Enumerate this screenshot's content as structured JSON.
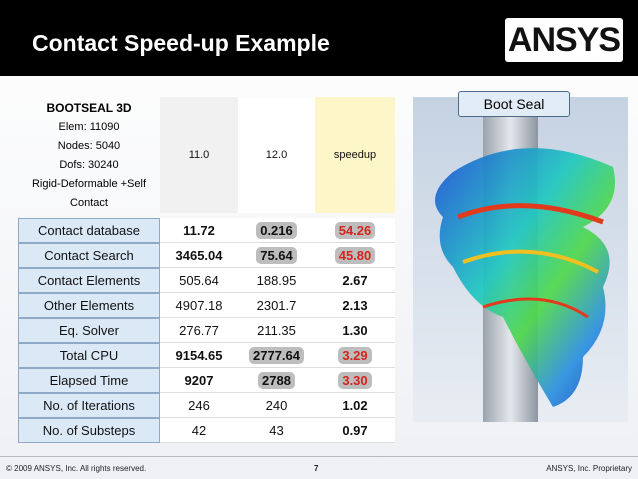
{
  "header": {
    "title": "Contact Speed-up Example",
    "logo": "ANSYS"
  },
  "table": {
    "corner": [
      "BOOTSEAL 3D",
      "Elem: 11090",
      "Nodes: 5040",
      "Dofs: 30240",
      "Rigid-Deformable +Self Contact"
    ],
    "columns": [
      "11.0",
      "12.0",
      "speedup"
    ],
    "rows": [
      [
        "Contact database",
        "11.72",
        "0.216",
        "54.26"
      ],
      [
        "Contact Search",
        "3465.04",
        "75.64",
        "45.80"
      ],
      [
        "Contact Elements",
        "505.64",
        "188.95",
        "2.67"
      ],
      [
        "Other Elements",
        "4907.18",
        "2301.7",
        "2.13"
      ],
      [
        "Eq. Solver",
        "276.77",
        "211.35",
        "1.30"
      ],
      [
        "Total CPU",
        "9154.65",
        "2777.64",
        "3.29"
      ],
      [
        "Elapsed Time",
        "9207",
        "2788",
        "3.30"
      ],
      [
        "No. of Iterations",
        "246",
        "240",
        "1.02"
      ],
      [
        "No. of Substeps",
        "42",
        "43",
        "0.97"
      ]
    ]
  },
  "image": {
    "label": "Boot Seal"
  },
  "footer": {
    "copyright": "© 2009 ANSYS, Inc.  All rights reserved.",
    "page": "7",
    "proprietary": "ANSYS, Inc. Proprietary"
  }
}
